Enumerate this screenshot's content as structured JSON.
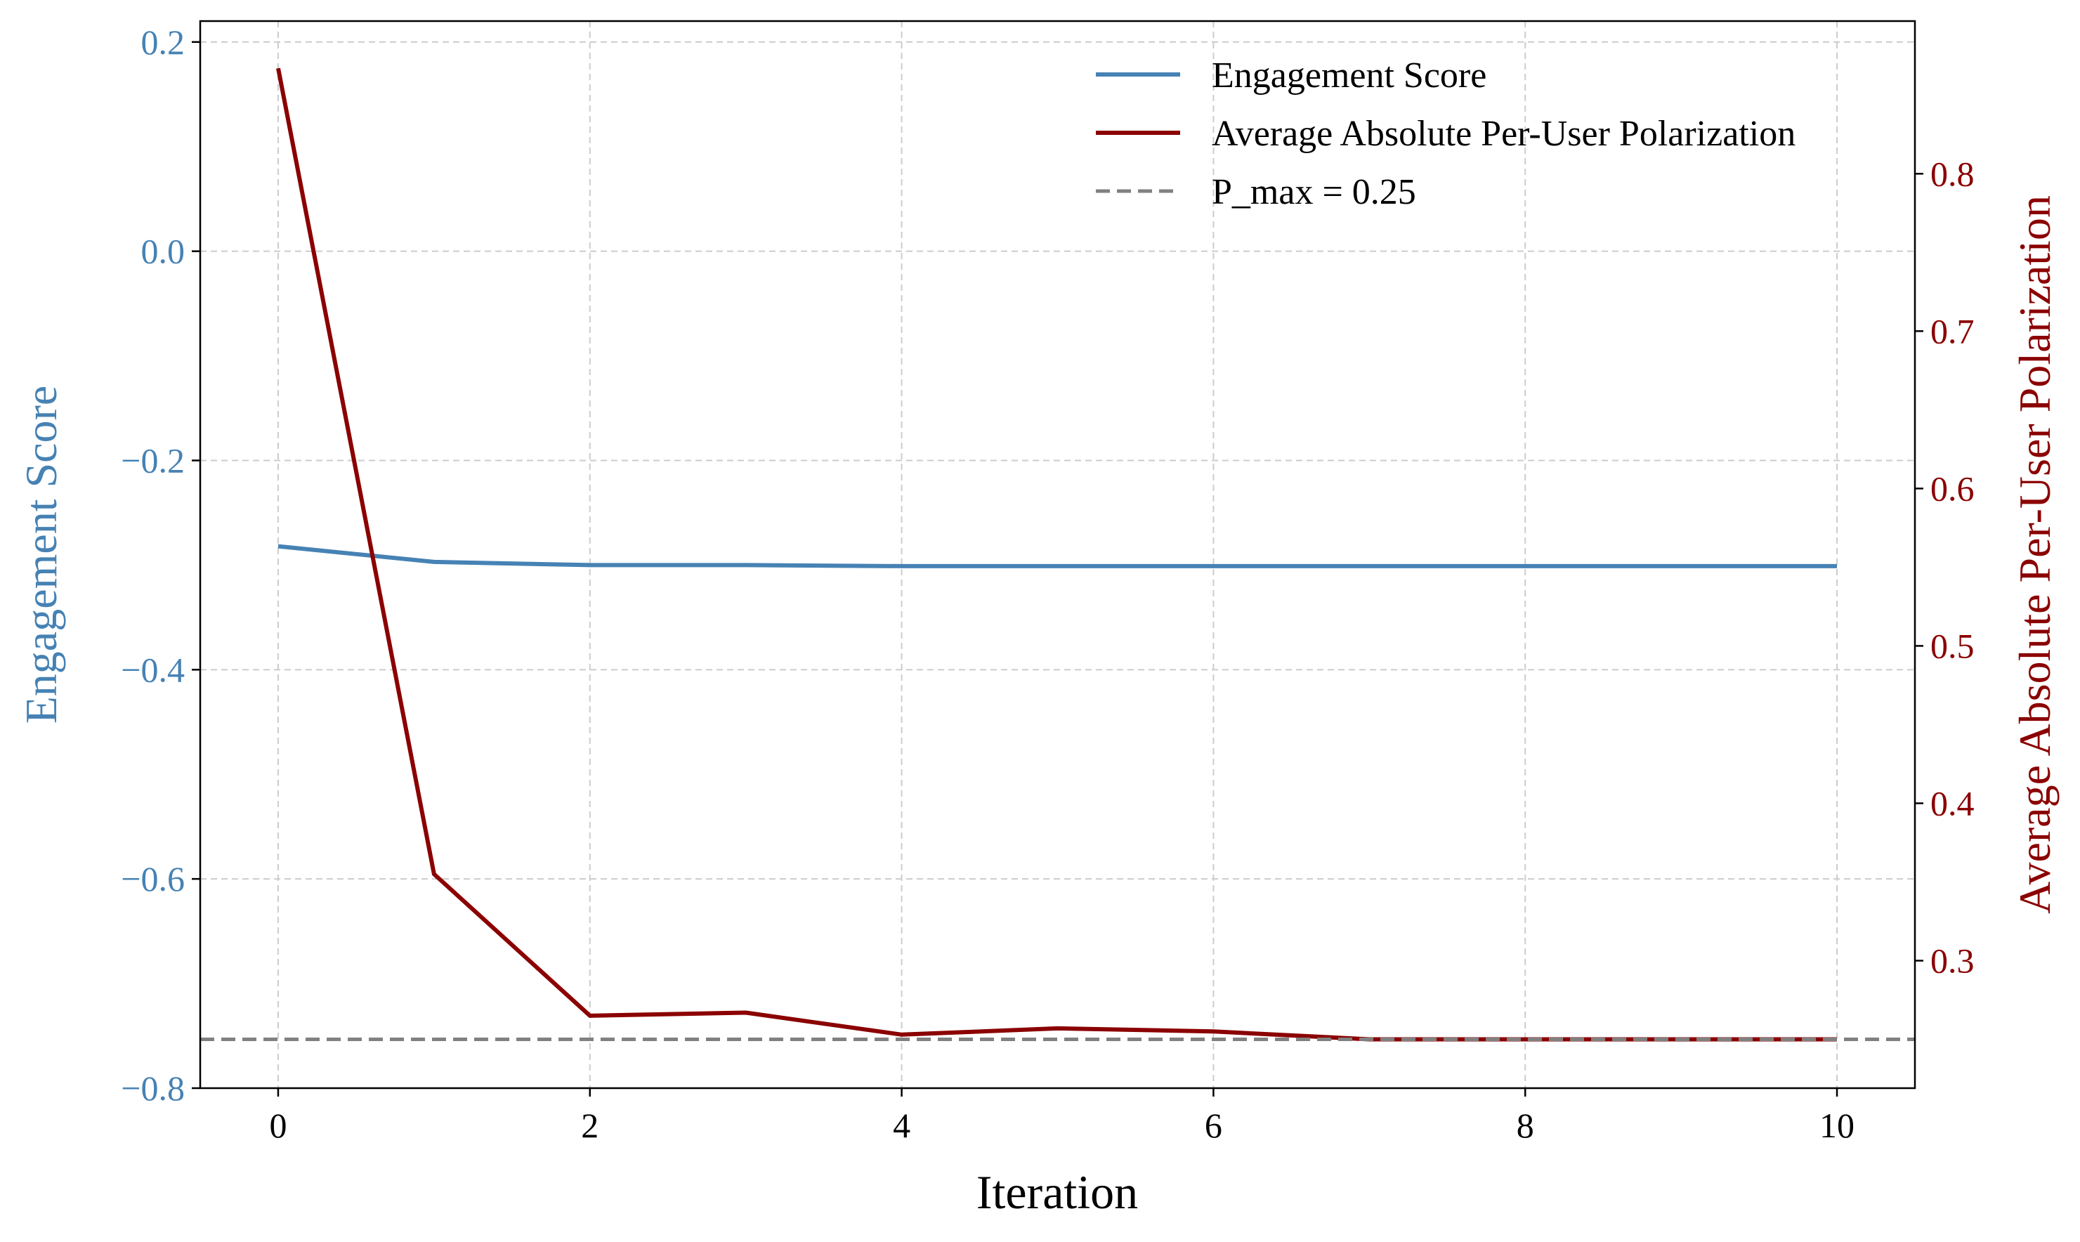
{
  "chart_data": {
    "type": "line",
    "xlabel": "Iteration",
    "x": [
      0,
      1,
      2,
      3,
      4,
      5,
      6,
      7,
      8,
      9,
      10
    ],
    "xlim": [
      -0.5,
      10.5
    ],
    "xticks": [
      0,
      2,
      4,
      6,
      8,
      10
    ],
    "grid": true,
    "legend_position": "top-right",
    "left_axis": {
      "label": "Engagement Score",
      "color": "#4682b4",
      "ylim": [
        -0.8,
        0.22
      ],
      "ticks": [
        0.2,
        0.0,
        -0.2,
        -0.4,
        -0.6,
        -0.8
      ],
      "tick_labels": [
        "0.2",
        "0.0",
        "−0.2",
        "−0.4",
        "−0.6",
        "−0.8"
      ]
    },
    "right_axis": {
      "label": "Average Absolute Per-User Polarization",
      "color": "#8b0000",
      "ylim": [
        0.219,
        0.897
      ],
      "ticks": [
        0.3,
        0.4,
        0.5,
        0.6,
        0.7,
        0.8
      ],
      "tick_labels": [
        "0.3",
        "0.4",
        "0.5",
        "0.6",
        "0.7",
        "0.8"
      ]
    },
    "series": [
      {
        "name": "Engagement Score",
        "axis": "left",
        "color": "#4682b4",
        "style": "solid",
        "values": [
          -0.282,
          -0.297,
          -0.3,
          -0.3,
          -0.301,
          -0.301,
          -0.301,
          -0.301,
          -0.301,
          -0.301,
          -0.301
        ]
      },
      {
        "name": "Average Absolute Per-User Polarization",
        "axis": "right",
        "color": "#8b0000",
        "style": "solid",
        "values": [
          0.867,
          0.355,
          0.265,
          0.267,
          0.253,
          0.257,
          0.255,
          0.25,
          0.25,
          0.25,
          0.25
        ]
      },
      {
        "name": "P_max = 0.25",
        "axis": "right",
        "color": "#808080",
        "style": "dashed",
        "constant": 0.25
      }
    ]
  }
}
